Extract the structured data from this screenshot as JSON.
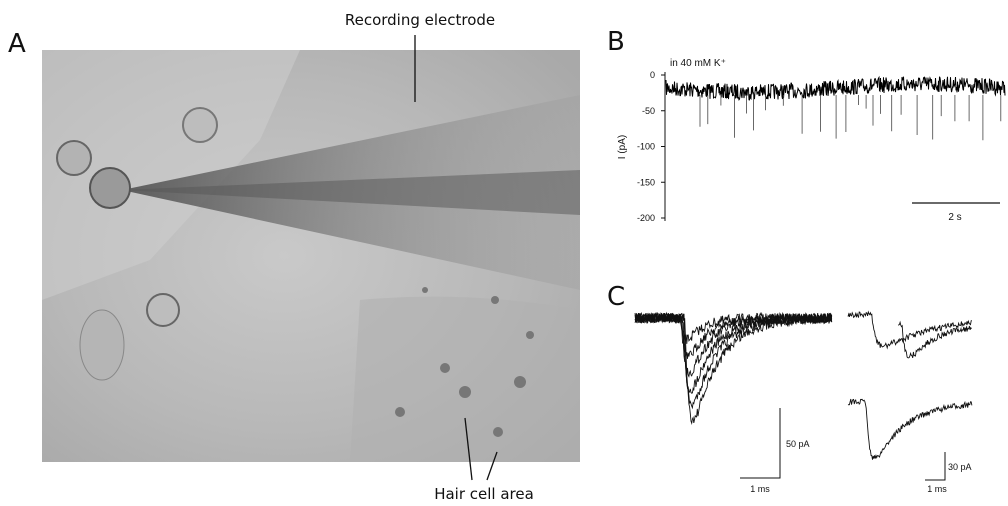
{
  "panel_a": {
    "label": "A",
    "electrode_label": "Recording electrode",
    "hair_cell_label": "Hair cell area"
  },
  "panel_b": {
    "label": "B",
    "condition": "in 40 mM K⁺",
    "y_axis_label": "I (pA)",
    "yticks": [
      0,
      -50,
      -100,
      -150,
      -200
    ],
    "scale_bar": "2 s"
  },
  "panel_c": {
    "label": "C",
    "scale_bars": [
      {
        "amplitude": "50 pA",
        "time": "1 ms"
      },
      {
        "amplitude": "30 pA",
        "time": "1 ms"
      }
    ]
  }
}
